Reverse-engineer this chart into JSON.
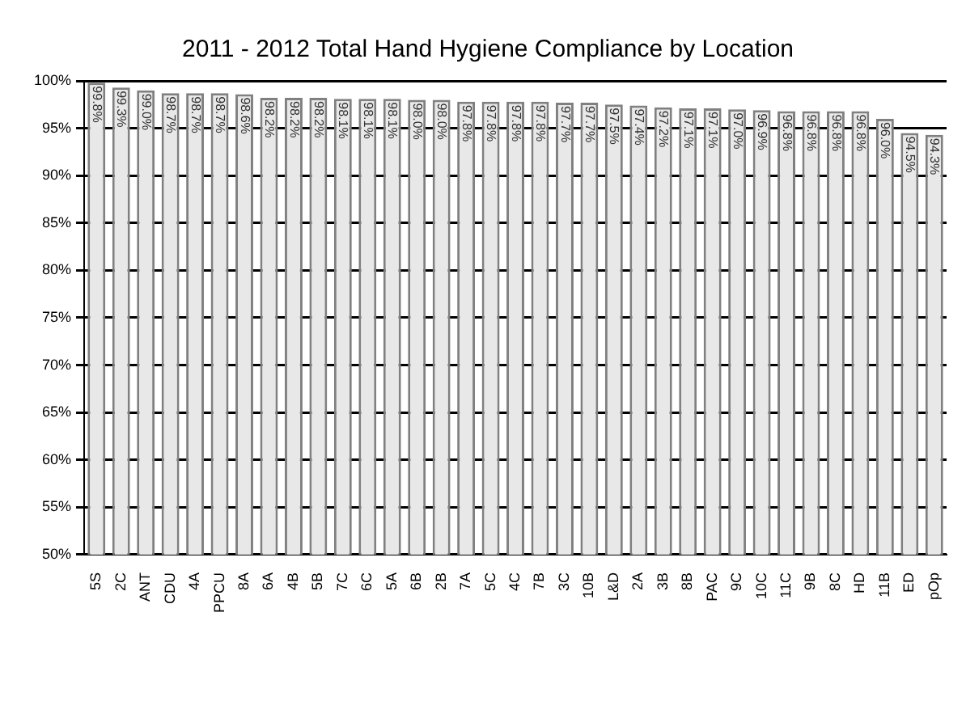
{
  "chart_data": {
    "type": "bar",
    "title": "2011 - 2012 Total Hand Hygiene Compliance by Location",
    "categories": [
      "5S",
      "2C",
      "ANT",
      "CDU",
      "4A",
      "PPCU",
      "8A",
      "6A",
      "4B",
      "5B",
      "7C",
      "6C",
      "5A",
      "6B",
      "2B",
      "7A",
      "5C",
      "4C",
      "7B",
      "3C",
      "10B",
      "L&D",
      "2A",
      "3B",
      "8B",
      "PAC",
      "9C",
      "10C",
      "11C",
      "9B",
      "8C",
      "HD",
      "11B",
      "ED",
      "pOp"
    ],
    "values": [
      99.8,
      99.3,
      99.0,
      98.7,
      98.7,
      98.7,
      98.6,
      98.2,
      98.2,
      98.2,
      98.1,
      98.1,
      98.1,
      98.0,
      98.0,
      97.8,
      97.8,
      97.8,
      97.8,
      97.7,
      97.7,
      97.5,
      97.4,
      97.2,
      97.1,
      97.1,
      97.0,
      96.9,
      96.8,
      96.8,
      96.8,
      96.8,
      96.0,
      94.5,
      94.3
    ],
    "value_labels": [
      "99.8%",
      "99.3%",
      "99.0%",
      "98.7%",
      "98.7%",
      "98.7%",
      "98.6%",
      "98.2%",
      "98.2%",
      "98.2%",
      "98.1%",
      "98.1%",
      "98.1%",
      "98.0%",
      "98.0%",
      "97.8%",
      "97.8%",
      "97.8%",
      "97.8%",
      "97.7%",
      "97.7%",
      "97.5%",
      "97.4%",
      "97.2%",
      "97.1%",
      "97.1%",
      "97.0%",
      "96.9%",
      "96.8%",
      "96.8%",
      "96.8%",
      "96.8%",
      "96.0%",
      "94.5%",
      "94.3%"
    ],
    "color": "#e8e8e8",
    "ylim": [
      50,
      100
    ],
    "yticks": [
      {
        "value": 50,
        "label": "50%"
      },
      {
        "value": 55,
        "label": "55%"
      },
      {
        "value": 60,
        "label": "60%"
      },
      {
        "value": 65,
        "label": "65%"
      },
      {
        "value": 70,
        "label": "70%"
      },
      {
        "value": 75,
        "label": "75%"
      },
      {
        "value": 80,
        "label": "80%"
      },
      {
        "value": 85,
        "label": "85%"
      },
      {
        "value": 90,
        "label": "90%"
      },
      {
        "value": 95,
        "label": "95%"
      },
      {
        "value": 100,
        "label": "100%"
      }
    ],
    "grid": "y",
    "legend": false
  }
}
